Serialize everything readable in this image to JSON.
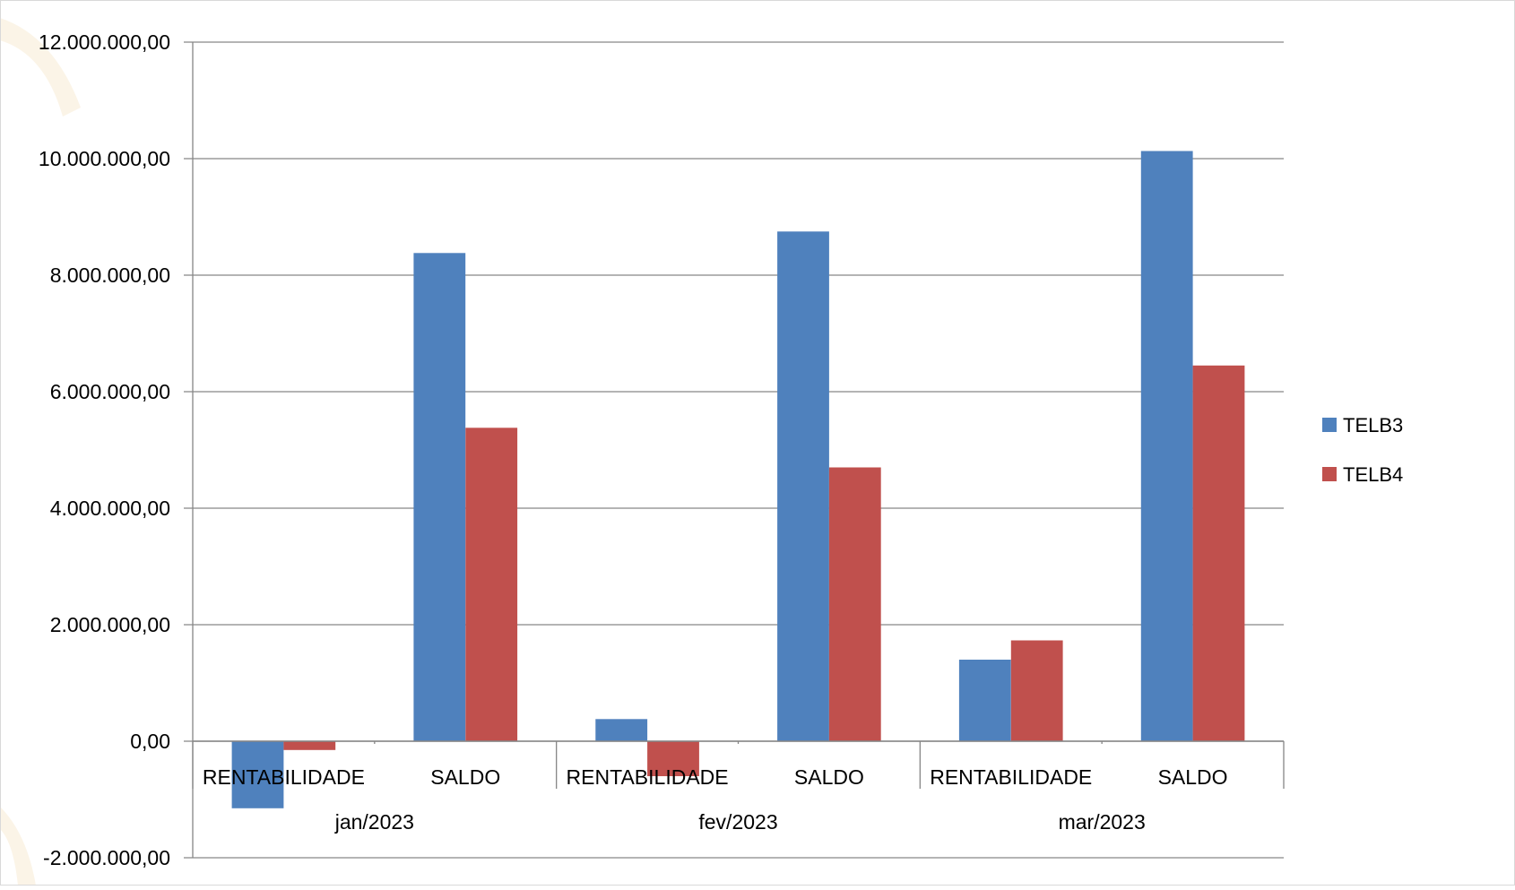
{
  "chart_data": {
    "type": "bar",
    "title": "",
    "xlabel": "",
    "ylabel": "",
    "ylim": [
      -2000000,
      12000000
    ],
    "ytick_step": 2000000,
    "ytick_labels": [
      "-2.000.000,00",
      "0,00",
      "2.000.000,00",
      "4.000.000,00",
      "6.000.000,00",
      "8.000.000,00",
      "10.000.000,00",
      "12.000.000,00"
    ],
    "grid": true,
    "legend_position": "right",
    "groups": [
      {
        "label": "jan/2023",
        "categories": [
          "RENTABILIDADE",
          "SALDO"
        ]
      },
      {
        "label": "fev/2023",
        "categories": [
          "RENTABILIDADE",
          "SALDO"
        ]
      },
      {
        "label": "mar/2023",
        "categories": [
          "RENTABILIDADE",
          "SALDO"
        ]
      }
    ],
    "series": [
      {
        "name": "TELB3",
        "color": "#4F81BD",
        "values": [
          -1150000,
          8380000,
          380000,
          8750000,
          1400000,
          10130000
        ]
      },
      {
        "name": "TELB4",
        "color": "#C0504D",
        "values": [
          -150000,
          5380000,
          -600000,
          4700000,
          1730000,
          6450000
        ]
      }
    ]
  }
}
